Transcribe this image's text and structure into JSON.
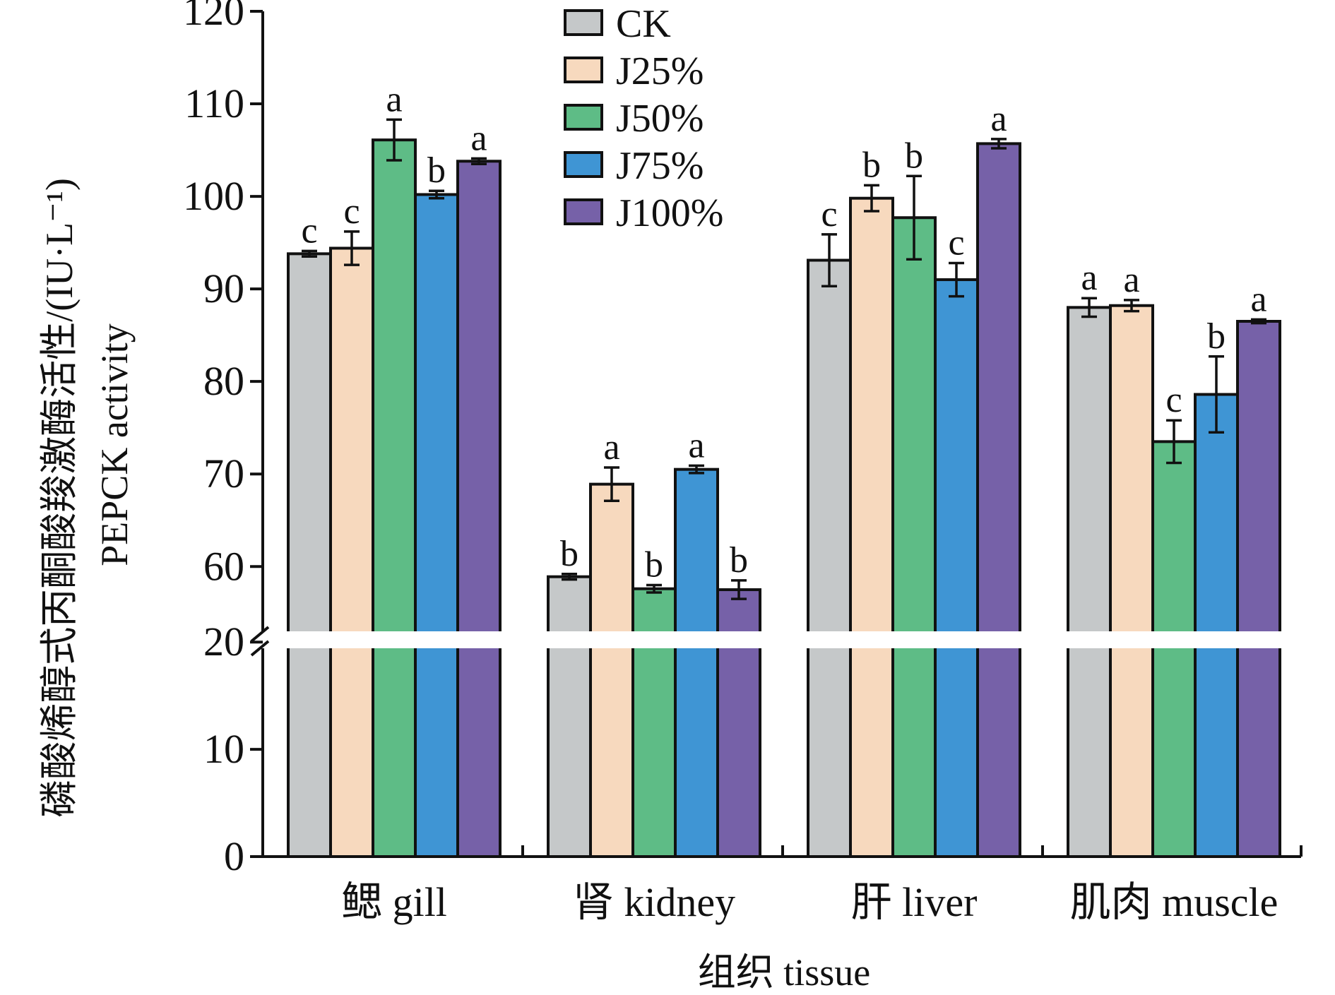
{
  "chart_data": {
    "type": "bar",
    "title": "",
    "xlabel": "组织 tissue",
    "ylabel_cn": "磷酸烯醇式丙酮酸羧激酶活性/(IU·L⁻¹)",
    "ylabel_en": "PEPCK activity",
    "y_axis_break": true,
    "y_ticks_lower": [
      "0",
      "10",
      "20"
    ],
    "y_ticks_upper": [
      "60",
      "70",
      "80",
      "90",
      "100",
      "110",
      "120"
    ],
    "ylim_lower": [
      0,
      20
    ],
    "ylim_upper": [
      53,
      120
    ],
    "legend_position": "top-center",
    "categories": [
      "鳃 gill",
      "肾 kidney",
      "肝 liver",
      "肌肉 muscle"
    ],
    "series": [
      {
        "name": "CK",
        "color": "#c5c8c9",
        "values": [
          93.8,
          58.9,
          93.1,
          88.0
        ],
        "errors": [
          0.3,
          0.3,
          2.8,
          1.0
        ],
        "sig": [
          "c",
          "b",
          "c",
          "a"
        ]
      },
      {
        "name": "J25%",
        "color": "#f7d9be",
        "values": [
          94.4,
          68.9,
          99.8,
          88.2
        ],
        "errors": [
          1.8,
          1.8,
          1.4,
          0.6
        ],
        "sig": [
          "c",
          "a",
          "b",
          "a"
        ]
      },
      {
        "name": "J50%",
        "color": "#5ebc86",
        "values": [
          106.1,
          57.6,
          97.7,
          73.5
        ],
        "errors": [
          2.2,
          0.4,
          4.5,
          2.3
        ],
        "sig": [
          "a",
          "b",
          "b",
          "c"
        ]
      },
      {
        "name": "J75%",
        "color": "#3f95d4",
        "values": [
          100.2,
          70.5,
          91.0,
          78.6
        ],
        "errors": [
          0.4,
          0.4,
          1.8,
          4.1
        ],
        "sig": [
          "b",
          "a",
          "c",
          "b"
        ]
      },
      {
        "name": "J100%",
        "color": "#7661a8",
        "values": [
          103.8,
          57.5,
          105.7,
          86.5
        ],
        "errors": [
          0.3,
          1.0,
          0.5,
          0.2
        ],
        "sig": [
          "a",
          "b",
          "a",
          "a"
        ]
      }
    ]
  }
}
